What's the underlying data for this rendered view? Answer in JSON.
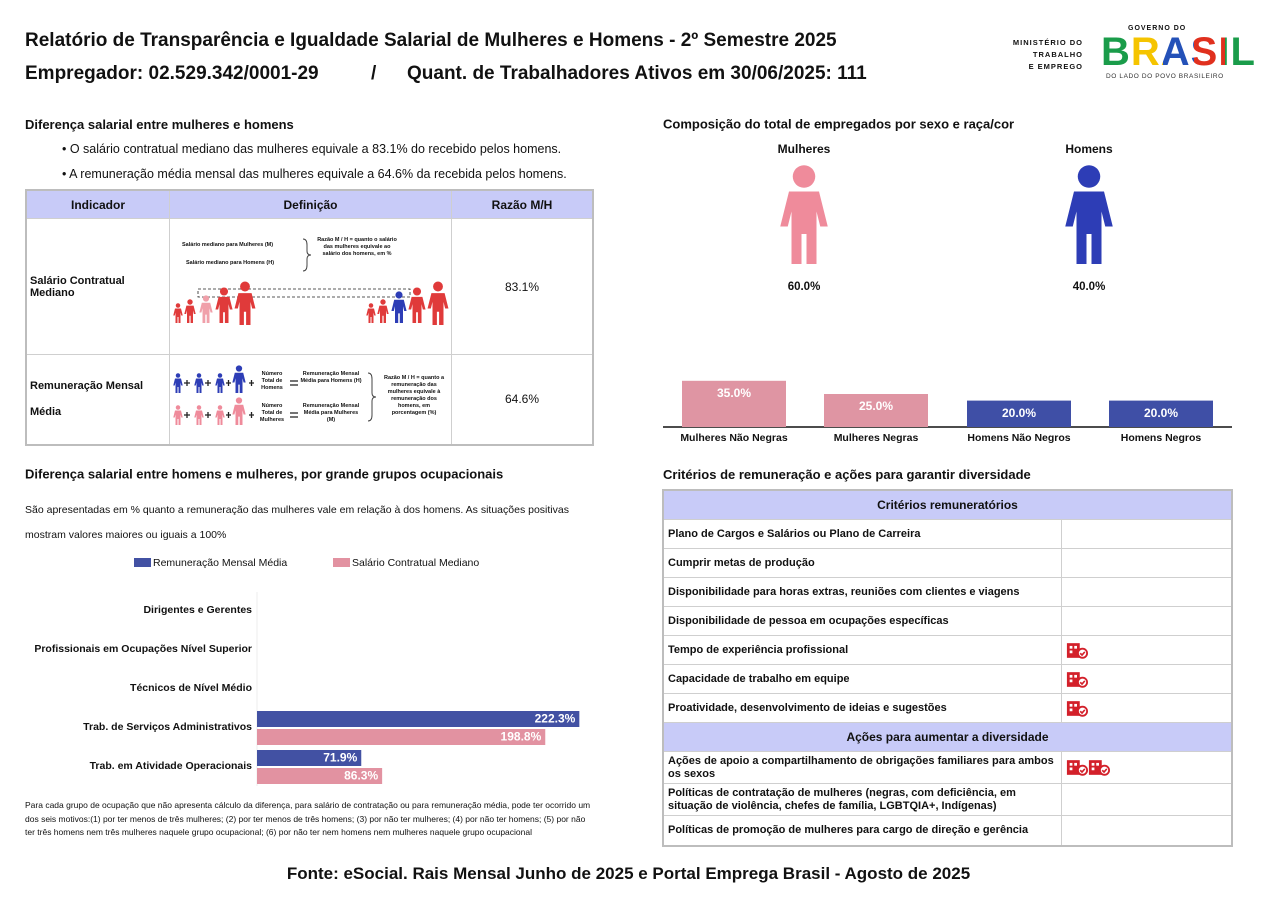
{
  "header": {
    "title": "Relatório de Transparência e Igualdade Salarial de Mulheres e Homens - 2º Semestre 2025",
    "employer": "Empregador: 02.529.342/0001-29",
    "separator": "/",
    "workers": "Quant. de Trabalhadores Ativos em 30/06/2025: 111",
    "ministry": [
      "MINISTÉRIO DO",
      "TRABALHO",
      "E EMPREGO"
    ],
    "gov_top": "GOVERNO DO",
    "gov_brand": "BRASIL",
    "gov_bottom": "DO LADO DO POVO BRASILEIRO"
  },
  "salary_gap": {
    "title": "Diferença salarial entre mulheres e homens",
    "bullets": [
      "O salário contratual mediano das mulheres equivale a 83.1% do recebido pelos homens.",
      "A remuneração média mensal das mulheres equivale a 64.6% da recebida pelos homens."
    ],
    "table": {
      "headers": [
        "Indicador",
        "Definição",
        "Razão M/H"
      ],
      "rows": [
        {
          "indicator": "Salário Contratual Mediano",
          "ratio": "83.1%",
          "definition": {
            "women": "Salário mediano para Mulheres (M)",
            "men": "Salário mediano para Homens (H)",
            "ratio_text": "Razão M / H = quanto o salário das mulheres equivale ao salário dos homens, em %"
          }
        },
        {
          "indicator": "Remuneração Mensal Média",
          "ratio": "64.6%",
          "definition": {
            "men_count": "Número Total de Homens",
            "men_avg": "Remuneração Mensal Média para Homens (H)",
            "women_count": "Número Total de Mulheres",
            "women_avg": "Remuneração Mensal Média para Mulheres (M)",
            "ratio_text": "Razão M / H = quanto a remuneração das mulheres equivale à remuneração dos homens, em porcentagem (%)"
          }
        }
      ]
    }
  },
  "chart_data": [
    {
      "type": "pictogram",
      "title": "Composição do total de empregados por sexo e raça/cor",
      "categories": [
        "Mulheres",
        "Homens"
      ],
      "values": [
        60,
        40
      ],
      "value_labels": [
        "60.0%",
        "40.0%"
      ],
      "colors": [
        "#ef8b9b",
        "#2d3db6"
      ]
    },
    {
      "type": "bar",
      "categories": [
        "Mulheres Não Negras",
        "Mulheres Negras",
        "Homens Não Negros",
        "Homens Negros"
      ],
      "values": [
        35,
        25,
        20,
        20
      ],
      "value_labels": [
        "35.0%",
        "25.0%",
        "20.0%",
        "20.0%"
      ],
      "colors": [
        "#df95a3",
        "#df95a3",
        "#3f4fa6",
        "#3f4fa6"
      ]
    },
    {
      "type": "hbar",
      "title": "Diferença salarial entre homens e mulheres, por grande grupos ocupacionais",
      "subtitle": "São apresentadas em % quanto a remuneração das mulheres vale em relação à dos homens. As situações positivas mostram valores maiores ou iguais a 100%",
      "categories": [
        "Dirigentes e Gerentes",
        "Profissionais em Ocupações Nível Superior",
        "Técnicos de Nível Médio",
        "Trab. de Serviços Administrativos",
        "Trab. em Atividade Operacionais"
      ],
      "series": [
        {
          "name": "Remuneração Mensal Média",
          "color": "#4251a3",
          "values": [
            null,
            null,
            null,
            222.3,
            71.9
          ],
          "value_labels": [
            null,
            null,
            null,
            "222.3%",
            "71.9%"
          ]
        },
        {
          "name": "Salário Contratual Mediano",
          "color": "#e292a1",
          "values": [
            null,
            null,
            null,
            198.8,
            86.3
          ],
          "value_labels": [
            null,
            null,
            null,
            "198.8%",
            "86.3%"
          ]
        }
      ],
      "footnote": "Para cada grupo de ocupação que não apresenta cálculo da diferença, para salário de contratação ou para remuneração média, pode ter ocorrido um dos seis motivos:(1) por ter menos de três mulheres; (2) por ter menos de três homens; (3) por não ter mulheres; (4) por não ter homens; (5) por não ter três homens nem três mulheres naquele grupo ocupacional; (6) por não ter nem homens nem mulheres naquele grupo ocupacional"
    }
  ],
  "criteria": {
    "title": "Critérios de remuneração e ações para garantir diversidade",
    "header": "Critérios remuneratórios",
    "rows": [
      "Plano de Cargos e Salários ou Plano de Carreira",
      "Cumprir metas de produção",
      "Disponibilidade para horas extras, reuniões com clientes e viagens",
      "Disponibilidade de pessoa em ocupações específicas",
      "Tempo de experiência profissional",
      "Capacidade de trabalho em equipe",
      "Proatividade, desenvolvimento de ideias e sugestões"
    ],
    "actions_header": "Ações para aumentar a diversidade",
    "actions": [
      "Ações de apoio a compartilhamento de obrigações familiares para ambos os sexos",
      "Políticas de contratação de mulheres (negras, com deficiência, em situação de violência, chefes de família, LGBTQIA+, Indígenas)",
      "Políticas de promoção de mulheres para cargo de direção e gerência"
    ]
  },
  "footer": "Fonte: eSocial. Rais Mensal Junho de 2025 e Portal Emprega Brasil - Agosto de 2025"
}
